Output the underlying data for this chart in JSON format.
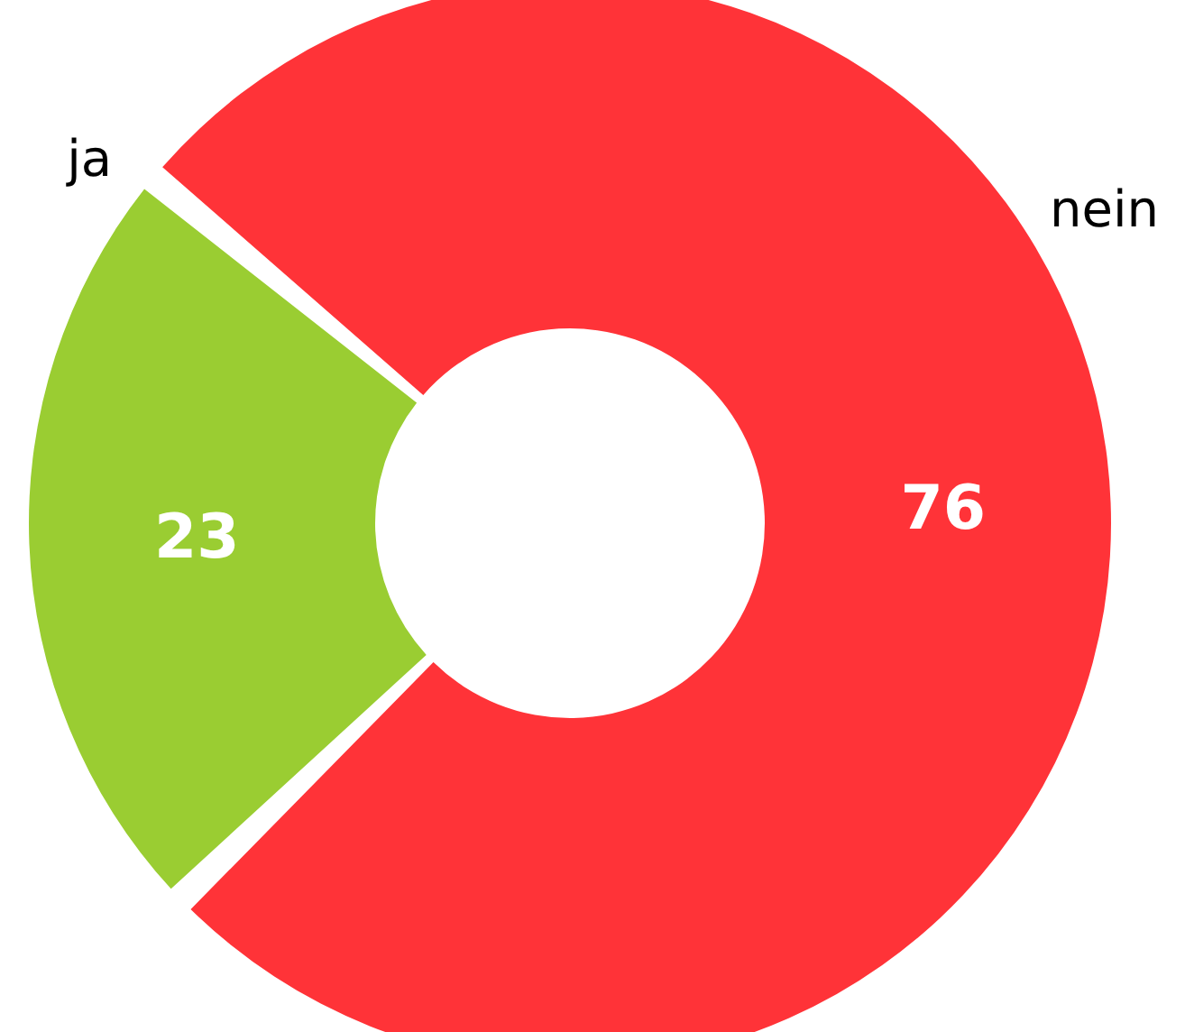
{
  "chart_data": {
    "type": "donut",
    "categories": [
      "ja",
      "nein"
    ],
    "values": [
      23,
      76
    ],
    "colors": [
      "#9acd32",
      "#ff3338"
    ],
    "data_labels": true,
    "legend": false
  }
}
